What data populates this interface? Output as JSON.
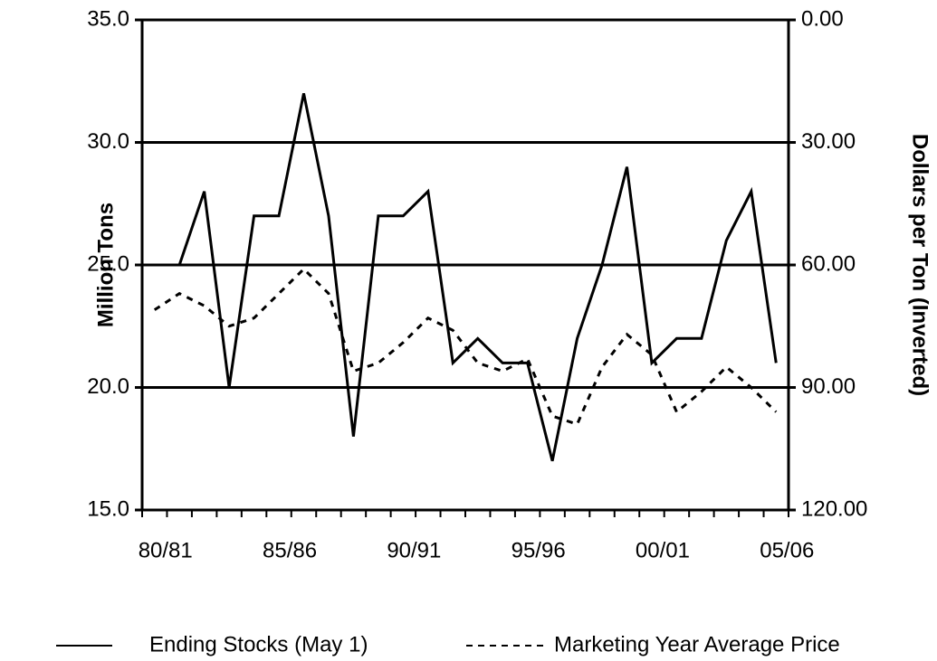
{
  "chart_data": {
    "type": "line",
    "categories": [
      "80/81",
      null,
      null,
      null,
      null,
      "85/86",
      null,
      null,
      null,
      null,
      "90/91",
      null,
      null,
      null,
      null,
      "95/96",
      null,
      null,
      null,
      null,
      "00/01",
      null,
      null,
      null,
      null,
      "05/06"
    ],
    "ylabel": "Million Tons",
    "y2label": "Dollars per Ton (Inverted)",
    "ylim": [
      15,
      35
    ],
    "yticks": [
      {
        "value": 15,
        "label": "15.0"
      },
      {
        "value": 20,
        "label": "20.0"
      },
      {
        "value": 25,
        "label": "25.0"
      },
      {
        "value": 30,
        "label": "30.0"
      },
      {
        "value": 35,
        "label": "35.0"
      }
    ],
    "y2lim": [
      120,
      0
    ],
    "y2ticks": [
      {
        "value": 0,
        "label": "0.00"
      },
      {
        "value": 30,
        "label": "30.00"
      },
      {
        "value": 60,
        "label": "60.00"
      },
      {
        "value": 90,
        "label": "90.00"
      },
      {
        "value": 120,
        "label": "120.00"
      }
    ],
    "y2_inverted": true,
    "grid": true,
    "legend": "bottom",
    "series": [
      {
        "name": "Ending Stocks (May 1)",
        "color": "#000000",
        "style": "solid",
        "values": [
          null,
          25,
          28,
          20,
          27,
          27,
          32,
          27,
          18,
          27,
          27,
          28,
          21,
          22,
          21,
          21,
          17,
          22,
          25,
          29,
          21,
          22,
          22,
          26,
          28,
          21
        ]
      },
      {
        "name": "Marketing Year Average Price",
        "color": "#000000",
        "style": "dashed",
        "axis": "y2",
        "values": [
          71,
          67,
          70,
          75,
          73,
          67,
          61,
          67,
          86,
          84,
          79,
          73,
          76,
          84,
          86,
          83,
          97,
          99,
          85,
          77,
          82,
          96,
          91,
          85,
          90,
          96
        ]
      }
    ]
  }
}
